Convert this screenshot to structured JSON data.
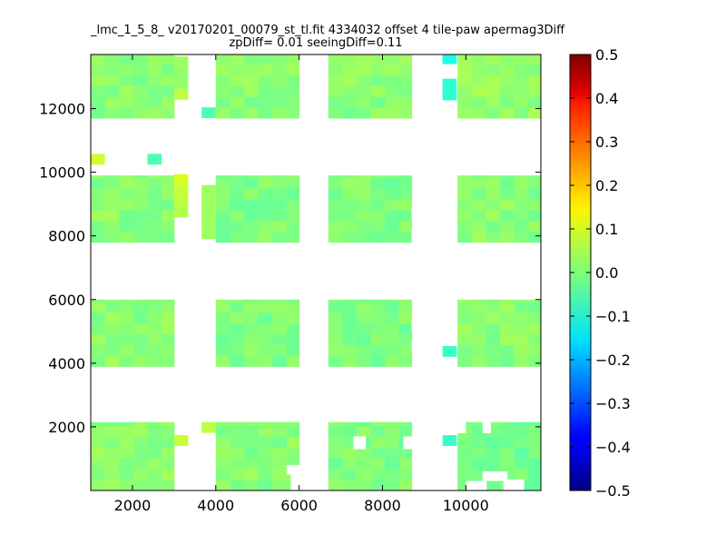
{
  "chart_data": {
    "type": "heatmap",
    "title": "_lmc_1_5_8_ v20170201_00079_st_tl.fit 4334032 offset 4 tile-paw apermag3Diff",
    "subtitle": "zpDiff= 0.01 seeingDiff=0.11",
    "xlabel": "",
    "ylabel": "",
    "xlim": [
      1000,
      11800
    ],
    "ylim": [
      0,
      13700
    ],
    "xticks": [
      2000,
      4000,
      6000,
      8000,
      10000
    ],
    "yticks": [
      2000,
      4000,
      6000,
      8000,
      10000,
      12000
    ],
    "colorbar": {
      "colormap": "jet",
      "vmin": -0.5,
      "vmax": 0.5,
      "ticks": [
        "0.5",
        "0.4",
        "0.3",
        "0.2",
        "0.1",
        "0.0",
        "−0.1",
        "−0.2",
        "−0.3",
        "−0.4",
        "−0.5"
      ]
    },
    "grid": false,
    "cell_size": 340,
    "approx_value_range": [
      -0.1,
      0.1
    ],
    "detectors": [
      {
        "x": [
          1000,
          3000
        ],
        "y": [
          0,
          2150
        ],
        "value": 0.01
      },
      {
        "x": [
          4000,
          6000
        ],
        "y": [
          0,
          2150
        ],
        "value": 0.01
      },
      {
        "x": [
          6700,
          8700
        ],
        "y": [
          0,
          2150
        ],
        "value": 0.0
      },
      {
        "x": [
          9800,
          11800
        ],
        "y": [
          0,
          2150
        ],
        "value": -0.01
      },
      {
        "x": [
          1000,
          3000
        ],
        "y": [
          3900,
          6000
        ],
        "value": 0.01
      },
      {
        "x": [
          4000,
          6000
        ],
        "y": [
          3900,
          6000
        ],
        "value": 0.0
      },
      {
        "x": [
          6700,
          8700
        ],
        "y": [
          3900,
          6000
        ],
        "value": 0.0
      },
      {
        "x": [
          9800,
          11800
        ],
        "y": [
          3900,
          6000
        ],
        "value": 0.01
      },
      {
        "x": [
          1000,
          3000
        ],
        "y": [
          7800,
          9900
        ],
        "value": 0.01
      },
      {
        "x": [
          4000,
          6000
        ],
        "y": [
          7800,
          9900
        ],
        "value": 0.0
      },
      {
        "x": [
          6700,
          8700
        ],
        "y": [
          7800,
          9900
        ],
        "value": 0.0
      },
      {
        "x": [
          9800,
          11800
        ],
        "y": [
          7800,
          9900
        ],
        "value": 0.01
      },
      {
        "x": [
          1000,
          3000
        ],
        "y": [
          11700,
          13700
        ],
        "value": 0.01
      },
      {
        "x": [
          4000,
          6000
        ],
        "y": [
          11700,
          13700
        ],
        "value": 0.01
      },
      {
        "x": [
          6700,
          8700
        ],
        "y": [
          11700,
          13700
        ],
        "value": 0.01
      },
      {
        "x": [
          9800,
          11800
        ],
        "y": [
          11700,
          13700
        ],
        "value": 0.02
      }
    ],
    "extra_cells": [
      {
        "x": 1000,
        "y": 10240,
        "value": 0.08
      },
      {
        "x": 2360,
        "y": 10240,
        "value": -0.05
      },
      {
        "x": 3000,
        "y": 9600,
        "value": 0.09
      },
      {
        "x": 3000,
        "y": 9260,
        "value": 0.07
      },
      {
        "x": 3000,
        "y": 8920,
        "value": 0.06
      },
      {
        "x": 3000,
        "y": 8580,
        "value": 0.05
      },
      {
        "x": 3000,
        "y": 13300,
        "value": 0.03
      },
      {
        "x": 3000,
        "y": 12960,
        "value": 0.02
      },
      {
        "x": 3000,
        "y": 12620,
        "value": 0.02
      },
      {
        "x": 3000,
        "y": 12280,
        "value": 0.06
      },
      {
        "x": 3660,
        "y": 11700,
        "value": -0.05
      },
      {
        "x": 3660,
        "y": 9260,
        "value": 0.03
      },
      {
        "x": 3660,
        "y": 8920,
        "value": 0.03
      },
      {
        "x": 3660,
        "y": 8580,
        "value": 0.03
      },
      {
        "x": 3660,
        "y": 8240,
        "value": 0.03
      },
      {
        "x": 3660,
        "y": 7900,
        "value": 0.03
      },
      {
        "x": 3000,
        "y": 1400,
        "value": 0.07
      },
      {
        "x": 3660,
        "y": 1810,
        "value": 0.06
      },
      {
        "x": 9440,
        "y": 13400,
        "value": -0.1
      },
      {
        "x": 9440,
        "y": 12600,
        "value": -0.08
      },
      {
        "x": 9440,
        "y": 12260,
        "value": -0.08
      },
      {
        "x": 9440,
        "y": 4200,
        "value": -0.07
      },
      {
        "x": 9440,
        "y": 1400,
        "value": -0.07
      }
    ],
    "holes": [
      {
        "x": [
          8700,
          9100
        ],
        "y": [
          7800,
          8240
        ]
      },
      {
        "x": [
          8700,
          9100
        ],
        "y": [
          8500,
          8900
        ]
      },
      {
        "x": [
          8700,
          9100
        ],
        "y": [
          5000,
          5400
        ]
      },
      {
        "x": [
          8700,
          9100
        ],
        "y": [
          4400,
          4700
        ]
      },
      {
        "x": [
          9800,
          10000
        ],
        "y": [
          1800,
          2150
        ]
      },
      {
        "x": [
          10400,
          10600
        ],
        "y": [
          1800,
          2150
        ]
      },
      {
        "x": [
          7300,
          7600
        ],
        "y": [
          1300,
          1700
        ]
      },
      {
        "x": [
          8500,
          8900
        ],
        "y": [
          1300,
          1700
        ]
      },
      {
        "x": [
          5700,
          6400
        ],
        "y": [
          500,
          800
        ]
      },
      {
        "x": [
          5800,
          6700
        ],
        "y": [
          0,
          500
        ]
      },
      {
        "x": [
          9000,
          9500
        ],
        "y": [
          0,
          500
        ]
      },
      {
        "x": [
          10400,
          11000
        ],
        "y": [
          300,
          600
        ]
      },
      {
        "x": [
          10000,
          10500
        ],
        "y": [
          0,
          300
        ]
      },
      {
        "x": [
          10900,
          11400
        ],
        "y": [
          0,
          350
        ]
      }
    ]
  }
}
